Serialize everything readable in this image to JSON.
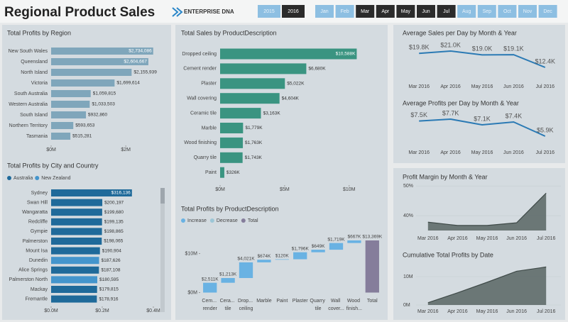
{
  "header": {
    "title": "Regional Product Sales",
    "logo": "ENTERPRISE DNA",
    "years": [
      {
        "label": "2015",
        "selected": false
      },
      {
        "label": "2016",
        "selected": true
      }
    ],
    "months": [
      {
        "label": "Jan",
        "selected": false
      },
      {
        "label": "Feb",
        "selected": false
      },
      {
        "label": "Mar",
        "selected": true
      },
      {
        "label": "Apr",
        "selected": true
      },
      {
        "label": "May",
        "selected": true
      },
      {
        "label": "Jun",
        "selected": true
      },
      {
        "label": "Jul",
        "selected": true
      },
      {
        "label": "Aug",
        "selected": false
      },
      {
        "label": "Sep",
        "selected": false
      },
      {
        "label": "Oct",
        "selected": false
      },
      {
        "label": "Nov",
        "selected": false
      },
      {
        "label": "Dec",
        "selected": false
      }
    ]
  },
  "chart_data": [
    {
      "type": "hbar",
      "title": "Total Profits by Region",
      "categories": [
        "New South Wales",
        "Queensland",
        "North Island",
        "Victoria",
        "South Australia",
        "Western Australia",
        "South Island",
        "Northern Territory",
        "Tasmania"
      ],
      "values": [
        2734086,
        2604667,
        2155939,
        1699614,
        1059815,
        1033503,
        932860,
        593653,
        515281
      ],
      "value_labels": [
        "$2,734,086",
        "$2,604,667",
        "$2,155,939",
        "$1,699,614",
        "$1,059,815",
        "$1,033,503",
        "$932,860",
        "$593,653",
        "$515,281"
      ],
      "color": "#7fa6bb",
      "xlim": [
        0,
        3100000
      ],
      "xticks": [
        {
          "value": 0,
          "label": "$0M"
        },
        {
          "value": 2000000,
          "label": "$2M"
        }
      ]
    },
    {
      "type": "hbar",
      "title": "Total Profits by City and Country",
      "categories": [
        "Sydney",
        "Swan Hill",
        "Wangaratta",
        "Redcliffe",
        "Gympie",
        "Palmerston",
        "Mount Isa",
        "Dunedin",
        "Alice Springs",
        "Palmerston North",
        "Mackay",
        "Fremantle"
      ],
      "series": [
        {
          "name": "Australia",
          "color": "#1f6a9a",
          "values": [
            316136,
            200197,
            199680,
            199135,
            198865,
            198065,
            190904,
            null,
            187108,
            null,
            179815,
            178916
          ],
          "value_labels": [
            "$316,136",
            "$200,197",
            "$199,680",
            "$199,135",
            "$198,865",
            "$198,065",
            "$190,904",
            null,
            "$187,108",
            null,
            "$179,815",
            "$178,916"
          ]
        },
        {
          "name": "New Zealand",
          "color": "#4495cc",
          "values": [
            null,
            null,
            null,
            null,
            null,
            null,
            null,
            187626,
            null,
            180595,
            null,
            null
          ],
          "value_labels": [
            null,
            null,
            null,
            null,
            null,
            null,
            null,
            "$187,626",
            null,
            "$180,595",
            null,
            null
          ]
        }
      ],
      "legend": "top-left",
      "xlim": [
        0,
        410000
      ],
      "xticks": [
        {
          "value": 0,
          "label": "$0.0M"
        },
        {
          "value": 200000,
          "label": "$0.2M"
        },
        {
          "value": 400000,
          "label": "$0.4M"
        }
      ]
    },
    {
      "type": "hbar",
      "title": "Total Sales by ProductDescription",
      "categories": [
        "Dropped ceiling",
        "Cement render",
        "Plaster",
        "Wall covering",
        "Ceramic tile",
        "Marble",
        "Wood finishing",
        "Quarry tile",
        "Paint"
      ],
      "values": [
        10588000,
        6680000,
        5022000,
        4604000,
        3163000,
        1779000,
        1763000,
        1743000,
        326000
      ],
      "value_labels": [
        "$10,588K",
        "$6,680K",
        "$5,022K",
        "$4,604K",
        "$3,163K",
        "$1,779K",
        "$1,763K",
        "$1,743K",
        "$326K"
      ],
      "color": "#3a9481",
      "xlim": [
        0,
        12600000
      ],
      "xticks": [
        {
          "value": 0,
          "label": "$0M"
        },
        {
          "value": 5000000,
          "label": "$5M"
        },
        {
          "value": 10000000,
          "label": "$10M"
        }
      ]
    },
    {
      "type": "waterfall",
      "title": "Total Profits by ProductDescription",
      "legend": [
        {
          "name": "Increase",
          "color": "#69b2e3"
        },
        {
          "name": "Decrease",
          "color": "#9cc6d6"
        },
        {
          "name": "Total",
          "color": "#857d9b"
        }
      ],
      "categories": [
        "Cem... render",
        "Cera... tile",
        "Drop... ceiling",
        "Marble",
        "Paint",
        "Plaster",
        "Quarry tile",
        "Wall cover...",
        "Wood finish...",
        "Total"
      ],
      "kinds": [
        "Increase",
        "Increase",
        "Increase",
        "Increase",
        "Increase",
        "Increase",
        "Increase",
        "Increase",
        "Increase",
        "Total"
      ],
      "values": [
        2511000,
        1213000,
        4021000,
        674000,
        120000,
        1796000,
        649000,
        1719000,
        667000,
        13369000
      ],
      "value_labels": [
        "$2,511K",
        "$1,213K",
        "$4,021K",
        "$674K",
        "$120K",
        "$1,796K",
        "$649K",
        "$1,719K",
        "$667K",
        "$13,369K"
      ],
      "ylim": [
        -1000000,
        15000000
      ],
      "yticks": [
        {
          "value": 0,
          "label": "$0M"
        },
        {
          "value": 10000000,
          "label": "$10M"
        }
      ]
    },
    {
      "type": "line",
      "title": "Average Sales per Day by Month & Year",
      "categories": [
        "Mar 2016",
        "Apr 2016",
        "May 2016",
        "Jun 2016",
        "Jul 2016"
      ],
      "values": [
        19800,
        21000,
        19000,
        19100,
        12400
      ],
      "value_labels": [
        "$19.8K",
        "$21.0K",
        "$19.0K",
        "$19.1K",
        "$12.4K"
      ],
      "color": "#2b7ab4"
    },
    {
      "type": "line",
      "title": "Average Profits per Day by Month & Year",
      "categories": [
        "Mar 2016",
        "Apr 2016",
        "May 2016",
        "Jun 2016",
        "Jul 2016"
      ],
      "values": [
        7500,
        7700,
        7100,
        7400,
        5900
      ],
      "value_labels": [
        "$7.5K",
        "$7.7K",
        "$7.1K",
        "$7.4K",
        "$5.9K"
      ],
      "color": "#2b7ab4"
    },
    {
      "type": "area",
      "title": "Profit Margin by Month & Year",
      "categories": [
        "Mar 2016",
        "Apr 2016",
        "May 2016",
        "Jun 2016",
        "Jul 2016"
      ],
      "values": [
        37.8,
        36.7,
        36.7,
        37.6,
        47.6
      ],
      "color": "#5f6c6a",
      "ylim": [
        35,
        51
      ],
      "yticks": [
        {
          "value": 40,
          "label": "40%"
        },
        {
          "value": 50,
          "label": "50%"
        }
      ]
    },
    {
      "type": "area",
      "title": "Cumulative Total Profits by Date",
      "categories": [
        "Mar 2016",
        "Apr 2016",
        "May 2016",
        "Jun 2016",
        "Jul 2016"
      ],
      "values": [
        800000,
        4300000,
        8000000,
        11900000,
        13400000
      ],
      "color": "#5f6c6a",
      "ylim": [
        0,
        16000000
      ],
      "yticks": [
        {
          "value": 0,
          "label": "0M"
        },
        {
          "value": 10000000,
          "label": "10M"
        }
      ]
    }
  ]
}
